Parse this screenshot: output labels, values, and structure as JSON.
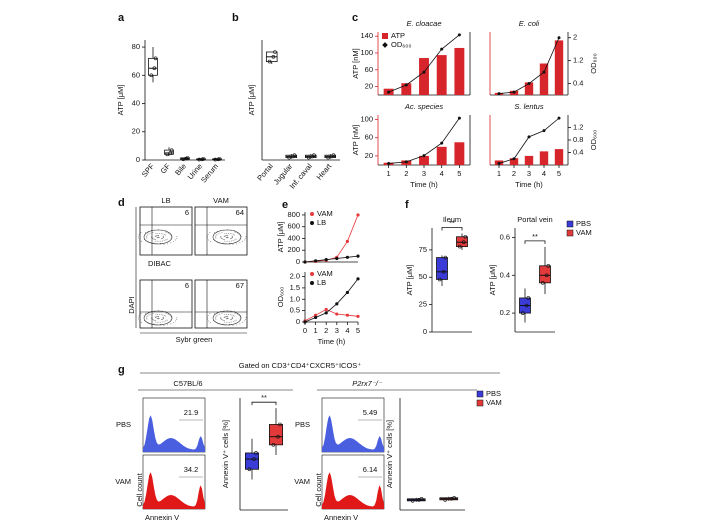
{
  "chart_data": [
    {
      "panel": "a",
      "type": "box",
      "ylabel": "ATP [μM]",
      "categories": [
        "SPF",
        "GF",
        "Bile",
        "Urine",
        "Serum"
      ],
      "stats": {
        "min": [
          55,
          3,
          0,
          0,
          0
        ],
        "q1": [
          60,
          4,
          0.5,
          0.3,
          0.3
        ],
        "median": [
          65,
          5,
          1,
          0.5,
          0.5
        ],
        "q3": [
          72,
          7,
          1.5,
          0.8,
          0.8
        ],
        "max": [
          80,
          9,
          2,
          1,
          1
        ]
      },
      "color": "#ffffff",
      "ylim": [
        0,
        85
      ],
      "yticks": [
        0,
        20,
        40,
        60,
        80
      ]
    },
    {
      "panel": "b",
      "type": "box",
      "ylabel": "ATP [μM]",
      "categories": [
        "Portal",
        "Jugular",
        "Inf. caval",
        "Heart"
      ],
      "stats": {
        "min": [
          0.8,
          0.01,
          0.01,
          0.01
        ],
        "q1": [
          0.82,
          0.02,
          0.02,
          0.02
        ],
        "median": [
          0.86,
          0.03,
          0.03,
          0.03
        ],
        "q3": [
          0.9,
          0.04,
          0.04,
          0.04
        ],
        "max": [
          0.9,
          0.05,
          0.05,
          0.05
        ]
      },
      "color": "#ffffff",
      "ylim": [
        0,
        1
      ]
    },
    {
      "panel": "c",
      "type": "bar_line",
      "title": "E. cloacae",
      "ylabel": "ATP [nM]",
      "x": [
        1,
        2,
        3,
        4,
        5
      ],
      "xlim": [
        0.4,
        5.6
      ],
      "series": [
        {
          "kind": "bar",
          "color": "#d7262b",
          "values": [
            15,
            28,
            88,
            95,
            112
          ]
        },
        {
          "kind": "line",
          "axis": "y2",
          "color": "#111111",
          "values": [
            0.1,
            0.35,
            0.8,
            1.6,
            2.1
          ]
        }
      ],
      "ylim": [
        0,
        150
      ],
      "yticks": [
        20,
        60,
        100,
        140
      ],
      "y2lim": [
        0,
        2.2
      ],
      "legend": [
        {
          "name": "ATP",
          "color": "#d7262b",
          "marker": "square"
        },
        {
          "name": "OD₆₀₀",
          "color": "#111111",
          "marker": "diamond"
        }
      ]
    },
    {
      "type": "bar_line",
      "title": "E. coli",
      "y2label": "OD₆₀₀",
      "x": [
        1,
        2,
        3,
        4,
        5
      ],
      "xlim": [
        0.4,
        5.6
      ],
      "series": [
        {
          "kind": "bar",
          "color": "#d7262b",
          "values": [
            5,
            10,
            30,
            75,
            130
          ]
        },
        {
          "kind": "line",
          "axis": "y2",
          "color": "#111111",
          "values": [
            0.05,
            0.1,
            0.4,
            0.8,
            2.0
          ]
        }
      ],
      "ylim": [
        0,
        150
      ],
      "y2lim": [
        0,
        2.2
      ],
      "y2ticks": [
        0.4,
        1.2,
        2
      ]
    },
    {
      "type": "bar_line",
      "title": "Ac. species",
      "ylabel": "ATP [nM]",
      "xlabel": "Time (h)",
      "x": [
        1,
        2,
        3,
        4,
        5
      ],
      "xlim": [
        0.4,
        5.6
      ],
      "xticks": [
        1,
        2,
        3,
        4,
        5
      ],
      "series": [
        {
          "kind": "bar",
          "color": "#d7262b",
          "values": [
            5,
            10,
            20,
            40,
            50
          ]
        },
        {
          "kind": "line",
          "axis": "y2",
          "color": "#111111",
          "values": [
            0.05,
            0.1,
            0.3,
            0.7,
            1.5
          ]
        }
      ],
      "ylim": [
        0,
        110
      ],
      "yticks": [
        20,
        60,
        100
      ],
      "y2lim": [
        0,
        1.6
      ]
    },
    {
      "type": "bar_line",
      "title": "S. lentus",
      "y2label": "OD₆₀₀",
      "xlabel": "Time (h)",
      "x": [
        1,
        2,
        3,
        4,
        5
      ],
      "xlim": [
        0.4,
        5.6
      ],
      "xticks": [
        1,
        2,
        3,
        4,
        5
      ],
      "series": [
        {
          "kind": "bar",
          "color": "#d7262b",
          "values": [
            10,
            15,
            20,
            30,
            35
          ]
        },
        {
          "kind": "line",
          "axis": "y2",
          "color": "#111111",
          "values": [
            0.05,
            0.2,
            0.9,
            1.1,
            1.5
          ]
        }
      ],
      "ylim": [
        0,
        110
      ],
      "y2lim": [
        0,
        1.6
      ],
      "y2ticks": [
        0.4,
        0.8,
        1.2
      ]
    },
    {
      "panel": "e",
      "type": "line",
      "ylabel": "ATP [μM]",
      "x": [
        0,
        1,
        2,
        3,
        4,
        5
      ],
      "xlim": [
        0,
        5
      ],
      "series": [
        {
          "name": "VAM",
          "color": "#e8383d",
          "values": [
            0,
            10,
            30,
            80,
            350,
            800
          ]
        },
        {
          "name": "LB",
          "color": "#111111",
          "values": [
            0,
            20,
            40,
            60,
            80,
            100
          ]
        }
      ],
      "ylim": [
        0,
        850
      ],
      "yticks": [
        0,
        200,
        400,
        600,
        800
      ]
    },
    {
      "type": "line",
      "ylabel": "OD₆₀₀",
      "xlabel": "Time (h)",
      "x": [
        0,
        1,
        2,
        3,
        4,
        5
      ],
      "xlim": [
        0,
        5
      ],
      "xticks": [
        0,
        1,
        2,
        3,
        4,
        5
      ],
      "series": [
        {
          "name": "VAM",
          "color": "#e8383d",
          "values": [
            0.05,
            0.3,
            0.55,
            0.35,
            0.3,
            0.25
          ]
        },
        {
          "name": "LB",
          "color": "#111111",
          "values": [
            0,
            0.2,
            0.4,
            0.8,
            1.3,
            1.9
          ]
        }
      ],
      "ylim": [
        0,
        2.2
      ],
      "yticks": [
        0,
        0.5,
        {
          "value": 1,
          "label": "1.0"
        },
        1.5,
        {
          "value": 2,
          "label": "2.0"
        }
      ]
    },
    {
      "panel": "f",
      "type": "box",
      "title": "Ileum",
      "ylabel": "ATP [μM]",
      "annotation": "**",
      "stats": {
        "min": [
          42,
          75
        ],
        "q1": [
          48,
          78
        ],
        "median": [
          55,
          82
        ],
        "q3": [
          68,
          87
        ],
        "max": [
          70,
          90
        ]
      },
      "colors": [
        "#3b3bd8",
        "#e23a3a"
      ],
      "ylim": [
        0,
        95
      ],
      "yticks": [
        0,
        25,
        50,
        75
      ]
    },
    {
      "type": "box",
      "title": "Portal vein",
      "ylabel": "ATP [μM]",
      "annotation": "**",
      "stats": {
        "min": [
          0.15,
          0.3
        ],
        "q1": [
          0.2,
          0.36
        ],
        "median": [
          0.24,
          0.4
        ],
        "q3": [
          0.28,
          0.45
        ],
        "max": [
          0.33,
          0.55
        ]
      },
      "colors": [
        "#3b3bd8",
        "#e23a3a"
      ],
      "ylim": [
        0.1,
        0.65
      ],
      "yticks": [
        0.2,
        0.4,
        0.6
      ],
      "legend": [
        {
          "name": "PBS",
          "color": "#3b3bd8",
          "marker": "square"
        },
        {
          "name": "VAM",
          "color": "#e23a3a",
          "marker": "square"
        }
      ]
    },
    {
      "type": "box",
      "ylabel": "Annexin V⁺ cells [%]",
      "annotation": "**",
      "stats": {
        "min": [
          15,
          27
        ],
        "q1": [
          20,
          32
        ],
        "median": [
          25,
          36
        ],
        "q3": [
          28,
          42
        ],
        "max": [
          35,
          50
        ]
      },
      "colors": [
        "#3b3bd8",
        "#e23a3a"
      ],
      "ylim": [
        0,
        55
      ]
    },
    {
      "type": "box",
      "ylabel": "Annexin V⁺ cells [%]",
      "stats": {
        "min": [
          4,
          4.5
        ],
        "q1": [
          4.5,
          5
        ],
        "median": [
          5,
          5.5
        ],
        "q3": [
          5.5,
          6
        ],
        "max": [
          6,
          6.5
        ]
      },
      "colors": [
        "#3b3bd8",
        "#e23a3a"
      ],
      "ylim": [
        0,
        55
      ],
      "legend": [
        {
          "name": "PBS",
          "color": "#3b3bd8",
          "marker": "square"
        },
        {
          "name": "VAM",
          "color": "#e23a3a",
          "marker": "square"
        }
      ]
    }
  ],
  "flow_d": {
    "panel": "d",
    "columns": [
      "LB",
      "VAM"
    ],
    "gates": [
      [
        6,
        64
      ],
      [
        6,
        67
      ]
    ],
    "top_xlabel": "DIBAC",
    "ylabel": "DAPI",
    "xlabel": "Sybr green"
  },
  "flow_g": {
    "panel": "g",
    "header": "Gated on CD3⁺CD4⁺CXCR5⁺ICOS⁺",
    "ylabel": "Cell count",
    "xlabel": "Annexin V",
    "groups": [
      {
        "title": "C57BL/6",
        "rows": [
          {
            "label": "PBS",
            "value": 21.9
          },
          {
            "label": "VAM",
            "value": 34.2
          }
        ]
      },
      {
        "title": "P2rx7⁻/⁻",
        "rows": [
          {
            "label": "PBS",
            "value": 5.49
          },
          {
            "label": "VAM",
            "value": 6.14
          }
        ]
      }
    ]
  }
}
